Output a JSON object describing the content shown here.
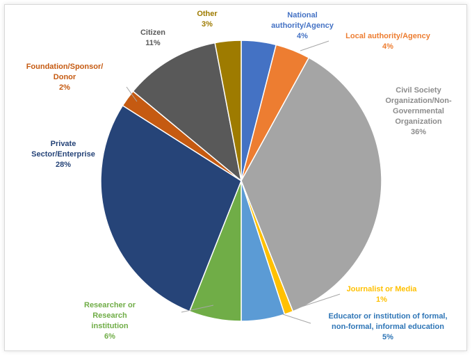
{
  "chart_data": {
    "type": "pie",
    "title": "",
    "start_angle_deg": 0,
    "direction": "clockwise",
    "slices": [
      {
        "name": "National authority/Agency",
        "value": 4,
        "label_lines": [
          "National",
          "authority/Agency"
        ],
        "value_text": "4%",
        "color": "#4472c4",
        "label_color": "#4472c4"
      },
      {
        "name": "Local authority/Agency",
        "value": 4,
        "label_lines": [
          "Local authority/Agency"
        ],
        "value_text": "4%",
        "color": "#ed7d31",
        "label_color": "#ed7d31"
      },
      {
        "name": "Civil Society Organization/Non-Governmental Organization",
        "value": 36,
        "label_lines": [
          "Civil Society",
          "Organization/Non-",
          "Governmental",
          "Organization"
        ],
        "value_text": "36%",
        "color": "#a5a5a5",
        "label_color": "#8c8c8c"
      },
      {
        "name": "Journalist or Media",
        "value": 1,
        "label_lines": [
          "Journalist or Media"
        ],
        "value_text": "1%",
        "color": "#ffc000",
        "label_color": "#ffc000"
      },
      {
        "name": "Educator or institution of formal, non-formal, informal education",
        "value": 5,
        "label_lines": [
          "Educator or institution of formal,",
          "non-formal, informal education"
        ],
        "value_text": "5%",
        "color": "#5b9bd5",
        "label_color": "#2e75b6"
      },
      {
        "name": "Researcher or Research institution",
        "value": 6,
        "label_lines": [
          "Researcher or",
          "Research",
          "institution"
        ],
        "value_text": "6%",
        "color": "#70ad47",
        "label_color": "#70ad47"
      },
      {
        "name": "Private Sector/Enterprise",
        "value": 28,
        "label_lines": [
          "Private",
          "Sector/Enterprise"
        ],
        "value_text": "28%",
        "color": "#264478",
        "label_color": "#264478"
      },
      {
        "name": "Foundation/Sponsor/Donor",
        "value": 2,
        "label_lines": [
          "Foundation/Sponsor/",
          "Donor"
        ],
        "value_text": "2%",
        "color": "#c55a11",
        "label_color": "#c55a11"
      },
      {
        "name": "Citizen",
        "value": 11,
        "label_lines": [
          "Citizen"
        ],
        "value_text": "11%",
        "color": "#595959",
        "label_color": "#595959"
      },
      {
        "name": "Other",
        "value": 3,
        "label_lines": [
          "Other"
        ],
        "value_text": "3%",
        "color": "#9e7b00",
        "label_color": "#9e7b00"
      }
    ]
  }
}
